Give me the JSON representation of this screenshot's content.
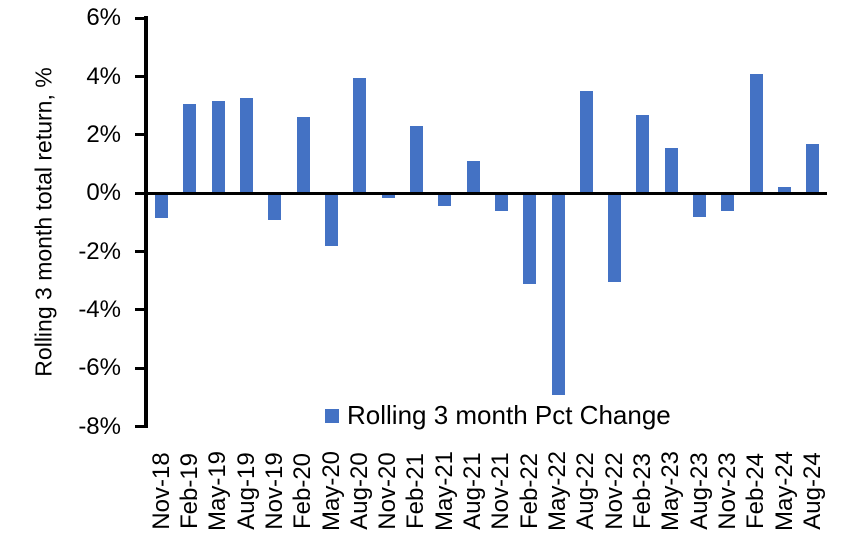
{
  "chart_data": {
    "type": "bar",
    "title": "",
    "xlabel": "",
    "ylabel": "Rolling 3 month total return, %",
    "categories": [
      "Nov-18",
      "Feb-19",
      "May-19",
      "Aug-19",
      "Nov-19",
      "Feb-20",
      "May-20",
      "Aug-20",
      "Nov-20",
      "Feb-21",
      "May-21",
      "Aug-21",
      "Nov-21",
      "Feb-22",
      "May-22",
      "Aug-22",
      "Nov-22",
      "Feb-23",
      "May-23",
      "Aug-23",
      "Nov-23",
      "Feb-24",
      "May-24",
      "Aug-24"
    ],
    "values": [
      -0.85,
      3.05,
      3.15,
      3.25,
      -0.9,
      2.6,
      -1.8,
      3.95,
      -0.15,
      2.3,
      -0.45,
      1.1,
      -0.6,
      -3.1,
      -6.9,
      3.5,
      -3.05,
      2.7,
      1.55,
      -0.8,
      -0.6,
      4.1,
      0.2,
      1.7
    ],
    "ylim": [
      -8,
      6
    ],
    "ytick_values": [
      6,
      4,
      2,
      0,
      -2,
      -4,
      -6,
      -8
    ],
    "ytick_labels": [
      "6%",
      "4%",
      "2%",
      "0%",
      "-2%",
      "-4%",
      "-6%",
      "-8%"
    ],
    "grid": false,
    "bar_color": "#4472C4",
    "axis_color": "#000000",
    "background_color": "#FFFFFF",
    "legend": {
      "position": "bottom",
      "items": [
        {
          "label": "Rolling 3 month Pct Change",
          "color": "#4472C4"
        }
      ]
    }
  }
}
